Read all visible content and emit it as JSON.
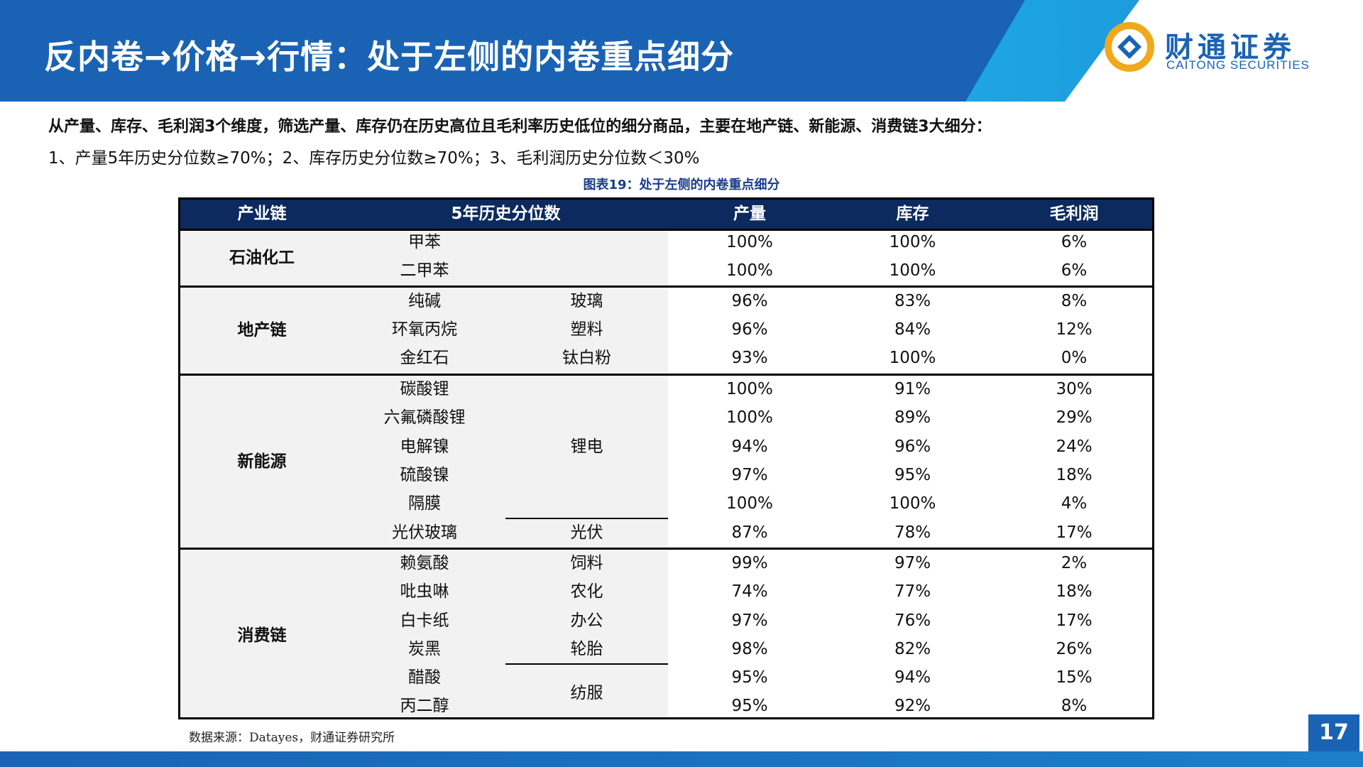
{
  "header": {
    "title": "反内卷→价格→行情：处于左侧的内卷重点细分",
    "logo_cn": "财通证券",
    "logo_en": "CAITONG SECURITIES"
  },
  "intro": {
    "line1": "从产量、库存、毛利润3个维度，筛选产量、库存仍在历史高位且毛利率历史低位的细分商品，主要在地产链、新能源、消费链3大细分：",
    "line2": "1、产量5年历史分位数≥70%；2、库存历史分位数≥70%；3、毛利润历史分位数＜30%"
  },
  "figure_title": "图表19：处于左侧的内卷重点细分",
  "table": {
    "headers": {
      "chain": "产业链",
      "pct": "5年历史分位数",
      "output": "产量",
      "inventory": "库存",
      "margin": "毛利润"
    },
    "groups": {
      "petro": "石油化工",
      "realestate": "地产链",
      "newenergy": "新能源",
      "consumer": "消费链"
    },
    "rows": [
      {
        "item": "甲苯",
        "cat": "",
        "output": "100%",
        "inventory": "100%",
        "margin": "6%"
      },
      {
        "item": "二甲苯",
        "cat": "",
        "output": "100%",
        "inventory": "100%",
        "margin": "6%"
      },
      {
        "item": "纯碱",
        "cat": "玻璃",
        "output": "96%",
        "inventory": "83%",
        "margin": "8%"
      },
      {
        "item": "环氧丙烷",
        "cat": "塑料",
        "output": "96%",
        "inventory": "84%",
        "margin": "12%"
      },
      {
        "item": "金红石",
        "cat": "钛白粉",
        "output": "93%",
        "inventory": "100%",
        "margin": "0%"
      },
      {
        "item": "碳酸锂",
        "cat": "",
        "output": "100%",
        "inventory": "91%",
        "margin": "30%"
      },
      {
        "item": "六氟磷酸锂",
        "cat": "",
        "output": "100%",
        "inventory": "89%",
        "margin": "29%"
      },
      {
        "item": "电解镍",
        "cat": "",
        "output": "94%",
        "inventory": "96%",
        "margin": "24%"
      },
      {
        "item": "硫酸镍",
        "cat": "",
        "output": "97%",
        "inventory": "95%",
        "margin": "18%"
      },
      {
        "item": "隔膜",
        "cat": "",
        "output": "100%",
        "inventory": "100%",
        "margin": "4%"
      },
      {
        "item": "光伏玻璃",
        "cat": "光伏",
        "output": "87%",
        "inventory": "78%",
        "margin": "17%"
      },
      {
        "item": "赖氨酸",
        "cat": "饲料",
        "output": "99%",
        "inventory": "97%",
        "margin": "2%"
      },
      {
        "item": "吡虫啉",
        "cat": "农化",
        "output": "74%",
        "inventory": "77%",
        "margin": "18%"
      },
      {
        "item": "白卡纸",
        "cat": "办公",
        "output": "97%",
        "inventory": "76%",
        "margin": "17%"
      },
      {
        "item": "炭黑",
        "cat": "轮胎",
        "output": "98%",
        "inventory": "82%",
        "margin": "26%"
      },
      {
        "item": "醋酸",
        "cat": "",
        "output": "95%",
        "inventory": "94%",
        "margin": "15%"
      },
      {
        "item": "丙二醇",
        "cat": "",
        "output": "95%",
        "inventory": "92%",
        "margin": "8%"
      }
    ],
    "merged": {
      "lithium": "锂电",
      "textile": "纺服"
    }
  },
  "source": "数据来源：Datayes，财通证券研究所",
  "page_number": "17",
  "colors": {
    "header_blue": "#1a63b4",
    "table_head": "#0d2a5e",
    "figure_title": "#1a3c8c"
  }
}
